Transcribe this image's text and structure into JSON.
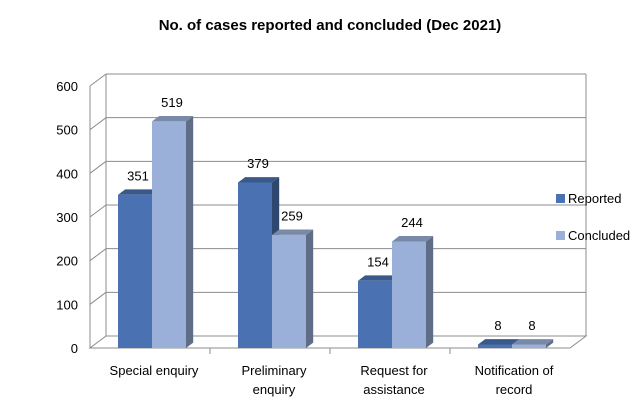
{
  "chart_data": {
    "type": "bar",
    "title": "No. of cases reported and concluded (Dec 2021)",
    "categories": [
      [
        "Special enquiry"
      ],
      [
        "Preliminary",
        "enquiry"
      ],
      [
        "Request for",
        "assistance"
      ],
      [
        "Notification of",
        "record"
      ]
    ],
    "series": [
      {
        "name": "Reported",
        "values": [
          351,
          379,
          154,
          8
        ],
        "color": "#4a72b2"
      },
      {
        "name": "Concluded",
        "values": [
          519,
          259,
          244,
          8
        ],
        "color": "#9bb0d8"
      }
    ],
    "data_labels": [
      [
        "351",
        "379",
        "154",
        "8"
      ],
      [
        "519",
        "259",
        "244",
        "8"
      ]
    ],
    "ylim": [
      0,
      600
    ],
    "yticks": [
      "0",
      "100",
      "200",
      "300",
      "400",
      "500",
      "600"
    ],
    "grid": true,
    "legend_position": "right",
    "style": "3d-clustered-column"
  }
}
